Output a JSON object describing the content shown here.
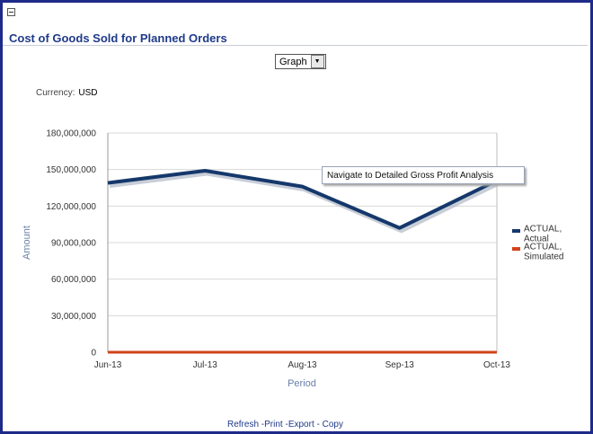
{
  "panel": {
    "title": "Cost of Goods Sold for Planned Orders",
    "view_select": {
      "value": "Graph",
      "arrow": "▼"
    },
    "currency_label": "Currency:",
    "currency_value": "USD"
  },
  "tooltip": {
    "text": "Navigate to Detailed Gross Profit Analysis"
  },
  "footer": {
    "refresh": "Refresh",
    "print": "-Print",
    "export": "-Export",
    "copy": "- Copy"
  },
  "colors": {
    "actual": "#15386b",
    "simulated": "#d2431a",
    "grid": "#d8d8d8"
  },
  "chart_data": {
    "type": "line",
    "title": "",
    "xlabel": "Period",
    "ylabel": "Amount",
    "categories": [
      "Jun-13",
      "Jul-13",
      "Aug-13",
      "Sep-13",
      "Oct-13"
    ],
    "ylim": [
      0,
      180000000
    ],
    "yticks": [
      {
        "value": 0,
        "label": "0"
      },
      {
        "value": 30000000,
        "label": "30,000,000"
      },
      {
        "value": 60000000,
        "label": "60,000,000"
      },
      {
        "value": 90000000,
        "label": "90,000,000"
      },
      {
        "value": 120000000,
        "label": "120,000,000"
      },
      {
        "value": 150000000,
        "label": "150,000,000"
      },
      {
        "value": 180000000,
        "label": "180,000,000"
      }
    ],
    "series": [
      {
        "name": "ACTUAL, Actual",
        "legend_lines": [
          "ACTUAL,",
          "Actual"
        ],
        "values": [
          139000000,
          149000000,
          136000000,
          102000000,
          141000000
        ]
      },
      {
        "name": "ACTUAL, Simulated",
        "legend_lines": [
          "ACTUAL,",
          "Simulated"
        ],
        "values": [
          0,
          0,
          0,
          0,
          0
        ]
      }
    ],
    "legend_position": "right"
  }
}
